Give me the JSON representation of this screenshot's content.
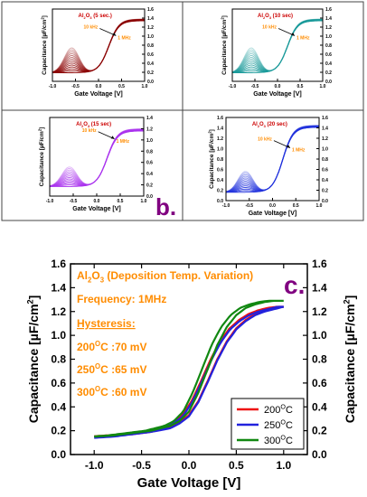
{
  "colors": {
    "dark_red": "#8b0000",
    "teal": "#1a9a9a",
    "violet": "#aa33ee",
    "blue": "#2233dd",
    "orange_text": "#ff8c00",
    "panel_label_purple": "#800080",
    "red": "#ee1111",
    "navy": "#2222dd",
    "green": "#118811"
  },
  "panel_b_label": "b.",
  "panel_c_label": "c.",
  "chart_data": [
    {
      "type": "line",
      "panel": "a1",
      "title": "Al2O3 (5 sec.)",
      "xlabel": "Gate Voltage [V]",
      "ylabel": "Capacitance [µF/cm2]",
      "xlim": [
        -1.0,
        1.0
      ],
      "ylim": [
        0.0,
        1.6
      ],
      "x_ticks": [
        "-1.0",
        "-0.5",
        "0.0",
        "0.5",
        "1.0"
      ],
      "y_ticks": [
        "0.0",
        "0.2",
        "0.4",
        "0.6",
        "0.8",
        "1.0",
        "1.2",
        "1.4",
        "1.6"
      ],
      "arrow_from_label": "10 kHz",
      "arrow_to_label": "1 MHz",
      "color": "#8b0000",
      "bump_height": 0.55,
      "high": 1.38,
      "low": 0.19
    },
    {
      "type": "line",
      "panel": "a2",
      "title": "Al2O3 (10 sec)",
      "xlabel": "Gate Voltage [V]",
      "ylabel": "Capacitance [µF/cm2]",
      "xlim": [
        -1.0,
        1.0
      ],
      "ylim": [
        0.0,
        1.6
      ],
      "x_ticks": [
        "-1.0",
        "-0.5",
        "0.0",
        "0.5",
        "1.0"
      ],
      "y_ticks": [
        "0.0",
        "0.2",
        "0.4",
        "0.6",
        "0.8",
        "1.0",
        "1.2",
        "1.4",
        "1.6"
      ],
      "arrow_from_label": "10 kHz",
      "arrow_to_label": "1 MHz",
      "color": "#1a9a9a",
      "bump_height": 0.55,
      "high": 1.38,
      "low": 0.19
    },
    {
      "type": "line",
      "panel": "b1",
      "title": "Al2O3 (15 sec)",
      "xlabel": "Gate Voltage [V]",
      "ylabel": "Capacitance [µF/cm2]",
      "xlim": [
        -1.0,
        1.0
      ],
      "ylim": [
        0.0,
        1.4
      ],
      "x_ticks": [
        "-1.0",
        "-0.5",
        "0.0",
        "0.5",
        "1.0"
      ],
      "y_ticks": [
        "0.0",
        "0.2",
        "0.4",
        "0.6",
        "0.8",
        "1.0",
        "1.2",
        "1.4"
      ],
      "arrow_from_label": "10 kHz",
      "arrow_to_label": "1 MHz",
      "color": "#aa33ee",
      "bump_height": 0.35,
      "high": 1.2,
      "low": 0.17
    },
    {
      "type": "line",
      "panel": "b2",
      "title": "Al2O3 (20 sec)",
      "xlabel": "Gate Voltage [V]",
      "ylabel": "Capacitance [µF/cm2]",
      "xlim": [
        -1.0,
        1.0
      ],
      "ylim": [
        0.0,
        1.6
      ],
      "x_ticks": [
        "-1.0",
        "-0.5",
        "0.0",
        "0.5",
        "1.0"
      ],
      "y_ticks": [
        "0.0",
        "0.2",
        "0.4",
        "0.6",
        "0.8",
        "1.0",
        "1.2",
        "1.4",
        "1.6"
      ],
      "arrow_from_label": "10 kHz",
      "arrow_to_label": "1 MHz",
      "color": "#2233dd",
      "bump_height": 0.4,
      "high": 1.45,
      "low": 0.16
    },
    {
      "type": "line",
      "panel": "c",
      "title": "",
      "xlabel": "Gate Voltage [V]",
      "ylabel": "Capacitance [µF/cm2]",
      "xlim": [
        -1.25,
        1.25
      ],
      "ylim": [
        0.0,
        1.6
      ],
      "x_ticks": [
        "-1.0",
        "-0.5",
        "0.0",
        "0.5",
        "1.0"
      ],
      "y_ticks": [
        "0.0",
        "0.2",
        "0.4",
        "0.6",
        "0.8",
        "1.0",
        "1.2",
        "1.4",
        "1.6"
      ],
      "annotations": [
        "Al2O3 (Deposition Temp. Variation)",
        "Frequency: 1MHz",
        "Hysteresis:",
        "200OC :70 mV",
        "250OC :65 mV",
        "300OC :60 mV"
      ],
      "legend_position": "bottom-right",
      "x": [
        -1.0,
        -0.8,
        -0.6,
        -0.4,
        -0.2,
        -0.1,
        0.0,
        0.1,
        0.2,
        0.3,
        0.4,
        0.5,
        0.6,
        0.7,
        0.8,
        0.9,
        1.0
      ],
      "series": [
        {
          "name": "200OC",
          "color": "#ee1111",
          "values": [
            0.15,
            0.16,
            0.17,
            0.19,
            0.23,
            0.27,
            0.33,
            0.45,
            0.62,
            0.8,
            0.95,
            1.06,
            1.13,
            1.18,
            1.21,
            1.23,
            1.24
          ],
          "hysteresis_V": 0.07
        },
        {
          "name": "250OC",
          "color": "#2222dd",
          "values": [
            0.14,
            0.15,
            0.17,
            0.19,
            0.22,
            0.26,
            0.32,
            0.44,
            0.61,
            0.79,
            0.94,
            1.05,
            1.12,
            1.17,
            1.2,
            1.22,
            1.24
          ],
          "hysteresis_V": 0.065
        },
        {
          "name": "300OC",
          "color": "#118811",
          "values": [
            0.15,
            0.16,
            0.18,
            0.2,
            0.24,
            0.28,
            0.36,
            0.52,
            0.72,
            0.92,
            1.07,
            1.17,
            1.23,
            1.26,
            1.28,
            1.29,
            1.29
          ],
          "hysteresis_V": 0.06
        }
      ]
    }
  ]
}
